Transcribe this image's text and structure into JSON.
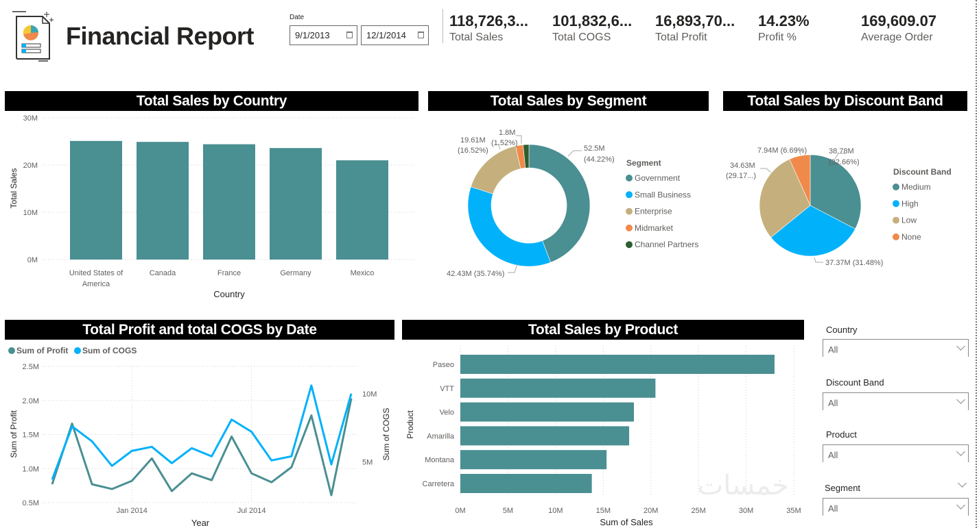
{
  "header": {
    "title": "Financial Report",
    "date_label": "Date",
    "date_from": "9/1/2013",
    "date_to": "12/1/2014"
  },
  "kpis": [
    {
      "value": "118,726,3...",
      "label": "Total Sales"
    },
    {
      "value": "101,832,6...",
      "label": "Total COGS"
    },
    {
      "value": "16,893,70...",
      "label": "Total Profit"
    },
    {
      "value": "14.23%",
      "label": "Profit %"
    },
    {
      "value": "169,609.07",
      "label": "Average Order"
    }
  ],
  "colors": {
    "teal": "#4A8F92",
    "blue": "#01B1FA",
    "tan": "#C5B07D",
    "orange": "#F08A4B",
    "green": "#2E5E2E"
  },
  "slicers": [
    {
      "label": "Country",
      "value": "All"
    },
    {
      "label": "Discount Band",
      "value": "All"
    },
    {
      "label": "Product",
      "value": "All"
    },
    {
      "label": "Segment",
      "value": "All"
    }
  ],
  "watermark": "خمسات",
  "chart_data": [
    {
      "type": "bar",
      "title": "Total Sales by Country",
      "xlabel": "Country",
      "ylabel": "Total Sales",
      "categories": [
        "United States of America",
        "Canada",
        "France",
        "Germany",
        "Mexico"
      ],
      "values": [
        25.1,
        24.9,
        24.4,
        23.6,
        21.0
      ],
      "unit": "M",
      "ylim": [
        0,
        30
      ],
      "yticks": [
        "0M",
        "10M",
        "20M",
        "30M"
      ],
      "grid": true
    },
    {
      "type": "pie",
      "variant": "donut",
      "title": "Total Sales by Segment",
      "legend_title": "Segment",
      "legend": "right",
      "slices": [
        {
          "name": "Government",
          "value": 52.5,
          "label1": "52.5M",
          "label2": "(44.22%)",
          "color": "#4A8F92"
        },
        {
          "name": "Small Business",
          "value": 42.43,
          "label1": "42.43M (35.74%)",
          "label2": "",
          "color": "#01B1FA"
        },
        {
          "name": "Enterprise",
          "value": 19.61,
          "label1": "19.61M",
          "label2": "(16.52%)",
          "color": "#C5B07D"
        },
        {
          "name": "Midmarket",
          "value": 2.39,
          "label1": "",
          "label2": "",
          "color": "#F08A4B"
        },
        {
          "name": "Channel Partners",
          "value": 1.8,
          "label1": "1.8M",
          "label2": "(1.52%)",
          "color": "#2E5E2E"
        }
      ]
    },
    {
      "type": "pie",
      "title": "Total Sales by Discount Band",
      "legend_title": "Discount Band",
      "legend": "right",
      "slices": [
        {
          "name": "Medium",
          "value": 38.78,
          "label1": "38.78M",
          "label2": "(32.66%)",
          "color": "#4A8F92"
        },
        {
          "name": "High",
          "value": 37.37,
          "label1": "37.37M (31.48%)",
          "label2": "",
          "color": "#01B1FA"
        },
        {
          "name": "Low",
          "value": 34.63,
          "label1": "34.63M",
          "label2": "(29.17...)",
          "color": "#C5B07D"
        },
        {
          "name": "None",
          "value": 7.94,
          "label1": "7.94M (6.69%)",
          "label2": "",
          "color": "#F08A4B"
        }
      ]
    },
    {
      "type": "line",
      "title": "Total Profit and total COGS by Date",
      "xlabel": "Year",
      "ylabel": "Sum of Profit",
      "y2label": "Sum of COGS",
      "x": [
        "2013-09",
        "2013-10",
        "2013-11",
        "2013-12",
        "2014-01",
        "2014-02",
        "2014-03",
        "2014-04",
        "2014-05",
        "2014-06",
        "2014-07",
        "2014-08",
        "2014-09",
        "2014-10",
        "2014-11",
        "2014-12"
      ],
      "xticks": [
        "Jan 2014",
        "Jul 2014"
      ],
      "ylim": [
        0.5,
        2.5
      ],
      "yticks": [
        "0.5M",
        "1.0M",
        "1.5M",
        "2.0M",
        "2.5M"
      ],
      "y2lim": [
        2,
        12
      ],
      "y2ticks": [
        "5M",
        "10M"
      ],
      "legend": "top-left",
      "series": [
        {
          "name": "Sum of Profit",
          "axis": "left",
          "color": "#4A8F92",
          "values": [
            0.77,
            1.66,
            0.77,
            0.7,
            0.82,
            1.15,
            0.67,
            0.93,
            0.83,
            1.47,
            0.93,
            0.8,
            1.02,
            1.78,
            0.61,
            2.03
          ]
        },
        {
          "name": "Sum of COGS",
          "axis": "right",
          "color": "#01B1FA",
          "values": [
            3.7,
            7.6,
            6.5,
            4.7,
            5.8,
            6.1,
            4.9,
            6.0,
            5.4,
            8.1,
            7.2,
            5.1,
            5.4,
            10.6,
            4.8,
            10.0
          ]
        }
      ]
    },
    {
      "type": "bar",
      "orientation": "horizontal",
      "title": "Total Sales by Product",
      "xlabel": "Sum of Sales",
      "ylabel": "Product",
      "categories": [
        "Paseo",
        "VTT",
        "Velo",
        "Amarilla",
        "Montana",
        "Carretera"
      ],
      "values": [
        32.98,
        20.48,
        18.22,
        17.72,
        15.35,
        13.8
      ],
      "xlim": [
        0,
        35
      ],
      "xticks": [
        "0M",
        "5M",
        "10M",
        "15M",
        "20M",
        "25M",
        "30M",
        "35M"
      ],
      "grid": true
    }
  ]
}
